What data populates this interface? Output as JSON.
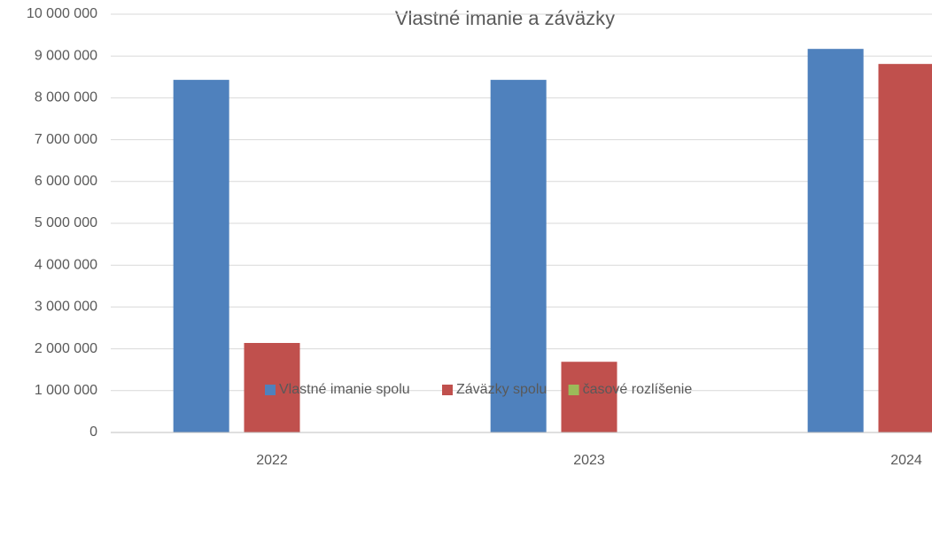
{
  "chart_data": {
    "type": "bar",
    "title": "Vlastné imanie a záväzky",
    "categories": [
      "2022",
      "2023",
      "2024"
    ],
    "series": [
      {
        "name": "Vlastné imanie spolu",
        "color": "#4f81bd",
        "values": [
          8430000,
          8430000,
          9170000
        ]
      },
      {
        "name": "Záväzky spolu",
        "color": "#c0504d",
        "values": [
          2140000,
          1690000,
          8810000
        ]
      },
      {
        "name": "časové rozlíšenie",
        "color": "#9bbb59",
        "values": [
          0,
          0,
          0
        ]
      }
    ],
    "ylim": [
      0,
      10000000
    ],
    "yticks": [
      0,
      {
        "value": 1000000,
        "label": "1 000 000"
      },
      {
        "value": 2000000,
        "label": "2 000 000"
      },
      {
        "value": 3000000,
        "label": "3 000 000"
      },
      {
        "value": 4000000,
        "label": "4 000 000"
      },
      {
        "value": 5000000,
        "label": "5 000 000"
      },
      {
        "value": 6000000,
        "label": "6 000 000"
      },
      {
        "value": 7000000,
        "label": "7 000 000"
      },
      {
        "value": 8000000,
        "label": "8 000 000"
      },
      {
        "value": 9000000,
        "label": "9 000 000"
      },
      {
        "value": 10000000,
        "label": "10 000 000"
      }
    ],
    "grid": true,
    "legend": "bottom"
  }
}
